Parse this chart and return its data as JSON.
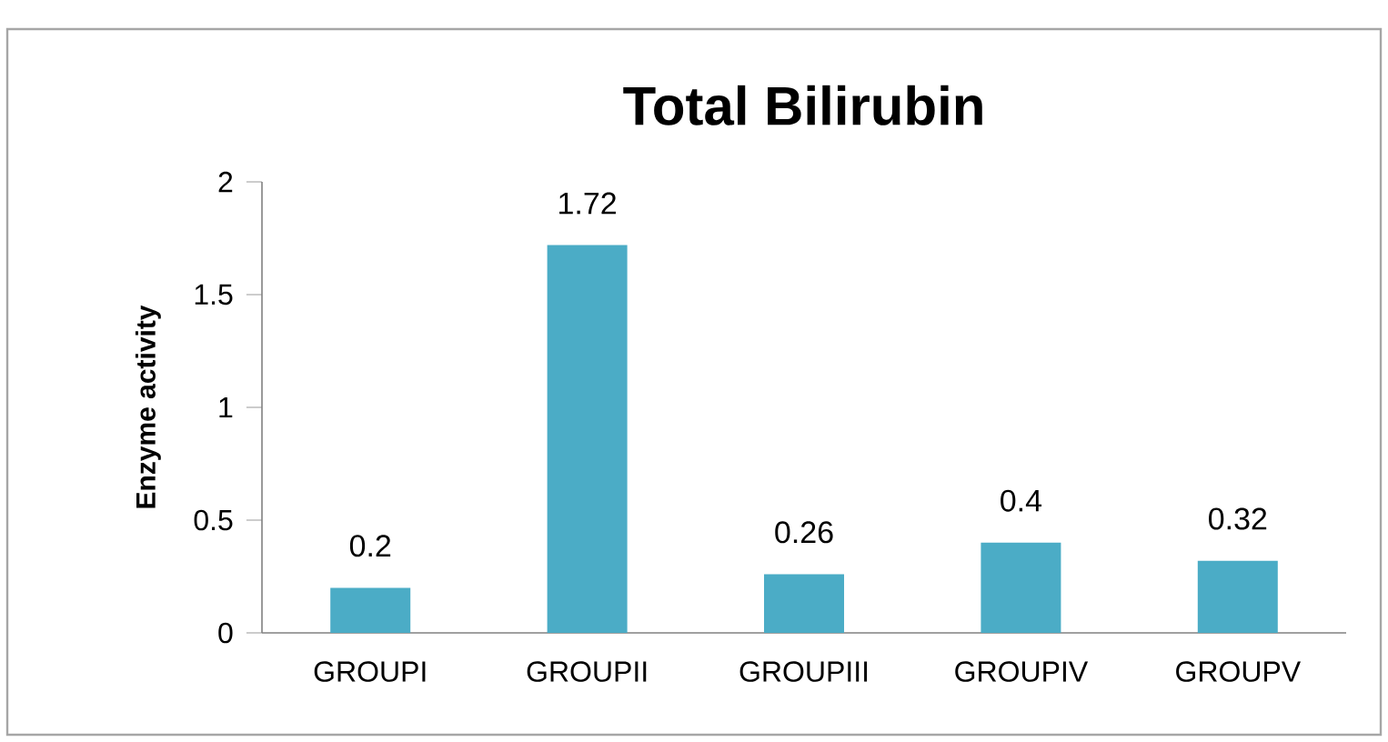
{
  "chart_data": {
    "type": "bar",
    "title": "Total Bilirubin",
    "ylabel": "Enzyme activity",
    "categories": [
      "GROUPI",
      "GROUPII",
      "GROUPIII",
      "GROUPIV",
      "GROUPV"
    ],
    "values": [
      0.2,
      1.72,
      0.26,
      0.4,
      0.32
    ],
    "color": "#4bacc6",
    "ylim": [
      0,
      2
    ],
    "yticks": [
      0,
      0.5,
      1,
      1.5,
      2
    ],
    "grid": false,
    "data_labels": true
  }
}
